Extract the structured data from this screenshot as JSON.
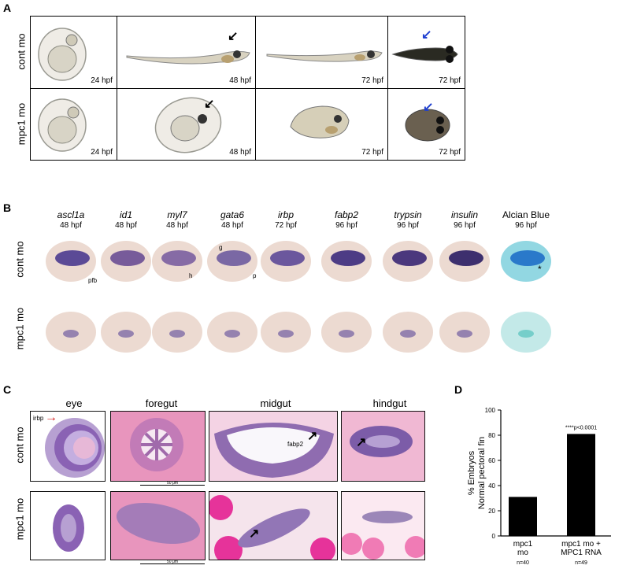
{
  "panelA": {
    "label": "A",
    "rows": [
      "cont mo",
      "mpc1 mo"
    ],
    "stages": [
      "24 hpf",
      "48 hpf",
      "72 hpf",
      "72 hpf"
    ]
  },
  "panelB": {
    "label": "B",
    "rows": [
      "cont mo",
      "mpc1 mo"
    ],
    "genes": [
      {
        "name": "ascl1a",
        "stage": "48 hpf",
        "italic": true
      },
      {
        "name": "id1",
        "stage": "48 hpf",
        "italic": true
      },
      {
        "name": "myl7",
        "stage": "48 hpf",
        "italic": true
      },
      {
        "name": "gata6",
        "stage": "48 hpf",
        "italic": true
      },
      {
        "name": "irbp",
        "stage": "72 hpf",
        "italic": true
      },
      {
        "name": "fabp2",
        "stage": "96 hpf",
        "italic": true
      },
      {
        "name": "trypsin",
        "stage": "96 hpf",
        "italic": true
      },
      {
        "name": "insulin",
        "stage": "96 hpf",
        "italic": true
      },
      {
        "name": "Alcian Blue",
        "stage": "96 hpf",
        "italic": false
      }
    ],
    "annotations": {
      "pfb": "pfb",
      "h": "h",
      "g": "g",
      "p": "p",
      "asterisk": "*"
    }
  },
  "panelC": {
    "label": "C",
    "rows": [
      "cont mo",
      "mpc1 mo"
    ],
    "columns": [
      "eye",
      "foregut",
      "midgut",
      "hindgut"
    ],
    "annotations": {
      "irbp": "irbp",
      "fabp2": "fabp2",
      "scale": "50 μm"
    }
  },
  "panelD": {
    "label": "D",
    "chart_data": {
      "type": "bar",
      "categories": [
        "mpc1 mo",
        "mpc1 mo + MPC1 RNA"
      ],
      "category_lines": [
        [
          "mpc1",
          "mo"
        ],
        [
          "mpc1 mo +",
          "MPC1 RNA"
        ]
      ],
      "n_labels": [
        "n=40",
        "n=49"
      ],
      "values": [
        31,
        81
      ],
      "ylabel_lines": [
        "% Embryos",
        "Normal pectoral fin"
      ],
      "ylim": [
        0,
        100
      ],
      "yticks": [
        0,
        20,
        40,
        60,
        80,
        100
      ],
      "annotation": "****p<0.0001",
      "bar_color": "#000000",
      "grid": false
    }
  }
}
